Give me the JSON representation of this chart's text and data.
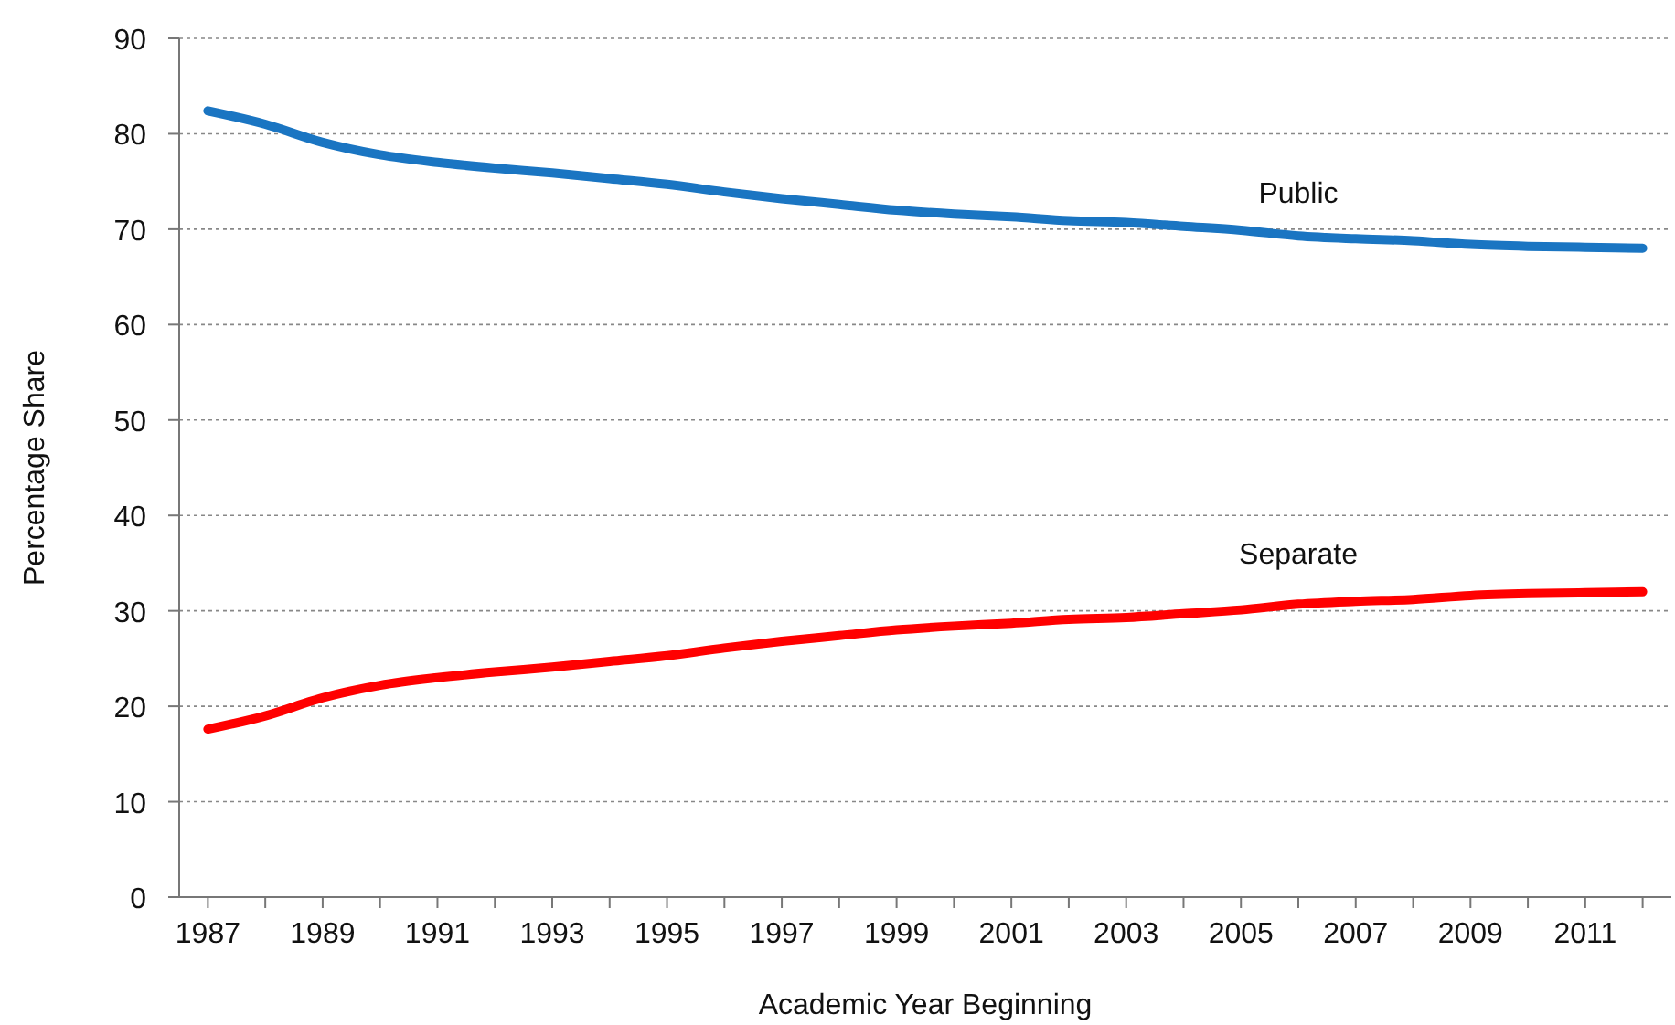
{
  "chart_data": {
    "type": "line",
    "xlabel": "Academic Year Beginning",
    "ylabel": "Percentage Share",
    "x": [
      1987,
      1988,
      1989,
      1990,
      1991,
      1992,
      1993,
      1994,
      1995,
      1996,
      1997,
      1998,
      1999,
      2000,
      2001,
      2002,
      2003,
      2004,
      2005,
      2006,
      2007,
      2008,
      2009,
      2010,
      2011,
      2012
    ],
    "series": [
      {
        "name": "Public",
        "color": "#1a75c2",
        "values": [
          82.4,
          81.0,
          79.1,
          77.8,
          77.0,
          76.4,
          75.9,
          75.3,
          74.7,
          73.9,
          73.2,
          72.6,
          72.0,
          71.6,
          71.3,
          70.9,
          70.7,
          70.3,
          69.9,
          69.3,
          69.0,
          68.8,
          68.4,
          68.2,
          68.1,
          68.0
        ]
      },
      {
        "name": "Separate",
        "color": "#ff0000",
        "values": [
          17.6,
          19.0,
          20.9,
          22.2,
          23.0,
          23.6,
          24.1,
          24.7,
          25.3,
          26.1,
          26.8,
          27.4,
          28.0,
          28.4,
          28.7,
          29.1,
          29.3,
          29.7,
          30.1,
          30.7,
          31.0,
          31.2,
          31.6,
          31.8,
          31.9,
          32.0
        ]
      }
    ],
    "xlim": [
      1986.5,
      2012.5
    ],
    "xticks": [
      1987,
      {
        "value": 1988,
        "label": null
      },
      1989,
      {
        "value": 1990,
        "label": null
      },
      1991,
      {
        "value": 1992,
        "label": null
      },
      1993,
      {
        "value": 1994,
        "label": null
      },
      1995,
      {
        "value": 1996,
        "label": null
      },
      1997,
      {
        "value": 1998,
        "label": null
      },
      1999,
      {
        "value": 2000,
        "label": null
      },
      2001,
      {
        "value": 2002,
        "label": null
      },
      2003,
      {
        "value": 2004,
        "label": null
      },
      2005,
      {
        "value": 2006,
        "label": null
      },
      2007,
      {
        "value": 2008,
        "label": null
      },
      2009,
      {
        "value": 2010,
        "label": null
      },
      2011,
      {
        "value": 2012,
        "label": null
      }
    ],
    "ylim": [
      0,
      90
    ],
    "yticks": [
      0,
      10,
      20,
      30,
      40,
      50,
      60,
      70,
      80,
      90
    ],
    "grid": "y",
    "legend": false,
    "marker": "none",
    "line_style": "solid"
  }
}
